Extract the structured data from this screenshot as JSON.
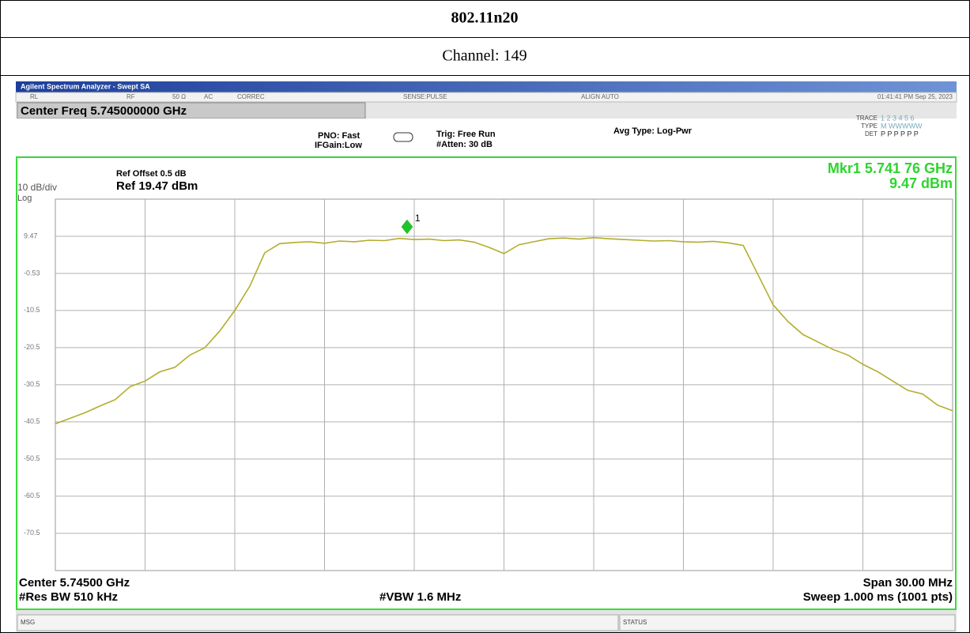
{
  "header": {
    "title": "802.11n20",
    "channel": "Channel: 149"
  },
  "analyzer": {
    "window_title": "Agilent Spectrum Analyzer - Swept SA",
    "status_row": [
      "RL",
      "RF",
      "50 Ω",
      "AC",
      "CORREC",
      "SENSE:PULSE",
      "ALIGN AUTO",
      "01:41:41 PM Sep 25, 2023"
    ],
    "center_freq": "Center Freq 5.745000000 GHz",
    "pno": "PNO: Fast",
    "ifgain": "IFGain:Low",
    "trig": "Trig: Free Run",
    "atten": "#Atten: 30 dB",
    "avg_type": "Avg Type: Log-Pwr",
    "trace_row": {
      "label": "TRACE",
      "values": "1 2 3 4 5 6"
    },
    "type_row": {
      "label": "TYPE",
      "values": "M WWWWW"
    },
    "det_row": {
      "label": "DET",
      "values": "P P P P P P"
    },
    "ref_offset": "Ref Offset 0.5 dB",
    "ref_level": "Ref 19.47 dBm",
    "scale": "10 dB/div",
    "scale_type": "Log",
    "marker_freq": "Mkr1 5.741 76 GHz",
    "marker_level": "9.47 dBm",
    "center": "Center 5.74500 GHz",
    "span": "Span 30.00 MHz",
    "rbw": "#Res BW 510 kHz",
    "vbw": "#VBW 1.6 MHz",
    "sweep": "Sweep 1.000 ms (1001 pts)",
    "msg": "MSG",
    "status": "STATUS"
  },
  "chart_data": {
    "type": "line",
    "x": [
      5.73,
      5.7305,
      5.731,
      5.7315,
      5.732,
      5.7325,
      5.733,
      5.7335,
      5.734,
      5.7345,
      5.735,
      5.7355,
      5.736,
      5.7365,
      5.737,
      5.7375,
      5.738,
      5.7385,
      5.739,
      5.7395,
      5.74,
      5.7405,
      5.741,
      5.7415,
      5.742,
      5.7425,
      5.743,
      5.7435,
      5.744,
      5.7445,
      5.745,
      5.7455,
      5.746,
      5.7465,
      5.747,
      5.7475,
      5.748,
      5.7485,
      5.749,
      5.7495,
      5.75,
      5.7505,
      5.751,
      5.7515,
      5.752,
      5.7525,
      5.753,
      5.7535,
      5.754,
      5.7545,
      5.755,
      5.7555,
      5.756,
      5.7565,
      5.757,
      5.7575,
      5.758,
      5.7585,
      5.759,
      5.7595,
      5.76
    ],
    "series": [
      {
        "color": "#b3ad2c",
        "values": [
          -41.0,
          -39.5,
          -38.0,
          -36.2,
          -34.5,
          -31.0,
          -29.5,
          -27.0,
          -25.8,
          -22.5,
          -20.5,
          -16.0,
          -10.5,
          -4.0,
          5.0,
          7.5,
          7.8,
          8.0,
          7.6,
          8.2,
          8.0,
          8.4,
          8.3,
          8.9,
          8.6,
          8.7,
          8.3,
          8.5,
          7.9,
          6.5,
          4.8,
          7.2,
          8.0,
          8.8,
          9.0,
          8.7,
          9.1,
          8.8,
          8.6,
          8.4,
          8.2,
          8.3,
          8.0,
          7.9,
          8.1,
          7.7,
          7.0,
          -1.0,
          -9.0,
          -13.5,
          -17.0,
          -19.0,
          -21.0,
          -22.5,
          -25.0,
          -27.0,
          -29.5,
          -32.0,
          -33.0,
          -36.0,
          -37.5
        ]
      }
    ],
    "xlim": [
      5.73,
      5.76
    ],
    "ylim": [
      -80.53,
      19.47
    ],
    "yticks": [
      9.47,
      -0.53,
      -10.5,
      -20.5,
      -30.5,
      -40.5,
      -50.5,
      -60.5,
      -70.5
    ],
    "xgrid": [
      5.733,
      5.736,
      5.739,
      5.742,
      5.745,
      5.748,
      5.751,
      5.754,
      5.757
    ],
    "grid": true,
    "marker": {
      "label": "1",
      "x": 5.74176,
      "y": 9.47,
      "color": "#22c22a"
    }
  }
}
